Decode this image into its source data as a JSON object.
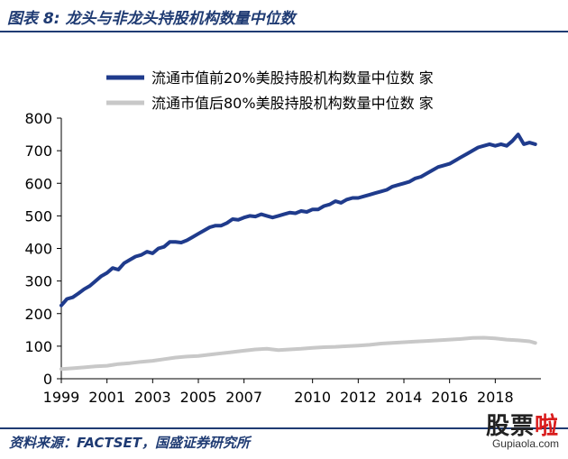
{
  "header": {
    "title": "图表 8:  龙头与非龙头持股机构数量中位数"
  },
  "footer": {
    "source": "资料来源：FACTSET，国盛证券研究所"
  },
  "watermark": {
    "brand_a": "股票",
    "brand_b": "啦",
    "url": "Gupiaola.com"
  },
  "colors": {
    "series_top": "#1f3b8c",
    "series_bottom": "#c8c8c8",
    "header": "#1f3b73"
  },
  "chart_data": {
    "type": "line",
    "title": "",
    "xlabel": "",
    "ylabel": "",
    "ylim": [
      0,
      800
    ],
    "xlim": [
      1999,
      2020
    ],
    "yticks": [
      "0",
      "100",
      "200",
      "300",
      "400",
      "500",
      "600",
      "700",
      "800"
    ],
    "xticks": [
      "1999",
      "2001",
      "2003",
      "2005",
      "2007",
      "2010",
      "2012",
      "2014",
      "2016",
      "2018"
    ],
    "legend_position": "top",
    "grid": false,
    "series": [
      {
        "name": "流通市值前20%美股持股机构数量中位数 家",
        "color": "#1f3b8c",
        "x": [
          1999.0,
          1999.25,
          1999.5,
          1999.75,
          2000.0,
          2000.25,
          2000.5,
          2000.75,
          2001.0,
          2001.25,
          2001.5,
          2001.75,
          2002.0,
          2002.25,
          2002.5,
          2002.75,
          2003.0,
          2003.25,
          2003.5,
          2003.75,
          2004.0,
          2004.25,
          2004.5,
          2004.75,
          2005.0,
          2005.25,
          2005.5,
          2005.75,
          2006.0,
          2006.25,
          2006.5,
          2006.75,
          2007.0,
          2007.25,
          2007.5,
          2007.75,
          2008.0,
          2008.25,
          2008.5,
          2008.75,
          2009.0,
          2009.25,
          2009.5,
          2009.75,
          2010.0,
          2010.25,
          2010.5,
          2010.75,
          2011.0,
          2011.25,
          2011.5,
          2011.75,
          2012.0,
          2012.25,
          2012.5,
          2012.75,
          2013.0,
          2013.25,
          2013.5,
          2013.75,
          2014.0,
          2014.25,
          2014.5,
          2014.75,
          2015.0,
          2015.25,
          2015.5,
          2015.75,
          2016.0,
          2016.25,
          2016.5,
          2016.75,
          2017.0,
          2017.25,
          2017.5,
          2017.75,
          2018.0,
          2018.25,
          2018.5,
          2018.75,
          2019.0,
          2019.25,
          2019.5,
          2019.75
        ],
        "y": [
          225,
          245,
          250,
          262,
          275,
          285,
          300,
          315,
          325,
          340,
          335,
          355,
          365,
          375,
          380,
          390,
          385,
          400,
          405,
          420,
          420,
          418,
          425,
          435,
          445,
          455,
          465,
          470,
          470,
          478,
          490,
          488,
          495,
          500,
          498,
          505,
          500,
          495,
          500,
          505,
          510,
          508,
          515,
          512,
          520,
          520,
          530,
          535,
          545,
          540,
          550,
          555,
          555,
          560,
          565,
          570,
          575,
          580,
          590,
          595,
          600,
          605,
          615,
          620,
          630,
          640,
          650,
          655,
          660,
          670,
          680,
          690,
          700,
          710,
          715,
          720,
          715,
          720,
          715,
          730,
          750,
          720,
          725,
          720
        ]
      },
      {
        "name": "流通市值后80%美股持股机构数量中位数 家",
        "color": "#c8c8c8",
        "x": [
          1999.0,
          1999.5,
          2000.0,
          2000.5,
          2001.0,
          2001.5,
          2002.0,
          2002.5,
          2003.0,
          2003.5,
          2004.0,
          2004.5,
          2005.0,
          2005.5,
          2006.0,
          2006.5,
          2007.0,
          2007.5,
          2008.0,
          2008.5,
          2009.0,
          2009.5,
          2010.0,
          2010.5,
          2011.0,
          2011.5,
          2012.0,
          2012.5,
          2013.0,
          2013.5,
          2014.0,
          2014.5,
          2015.0,
          2015.5,
          2016.0,
          2016.5,
          2017.0,
          2017.5,
          2018.0,
          2018.5,
          2019.0,
          2019.5,
          2019.75
        ],
        "y": [
          30,
          32,
          35,
          38,
          40,
          45,
          48,
          52,
          55,
          60,
          65,
          68,
          70,
          74,
          78,
          82,
          86,
          90,
          92,
          88,
          90,
          92,
          95,
          97,
          98,
          100,
          102,
          104,
          108,
          110,
          112,
          114,
          116,
          118,
          120,
          122,
          125,
          126,
          124,
          120,
          118,
          115,
          110
        ]
      }
    ]
  }
}
